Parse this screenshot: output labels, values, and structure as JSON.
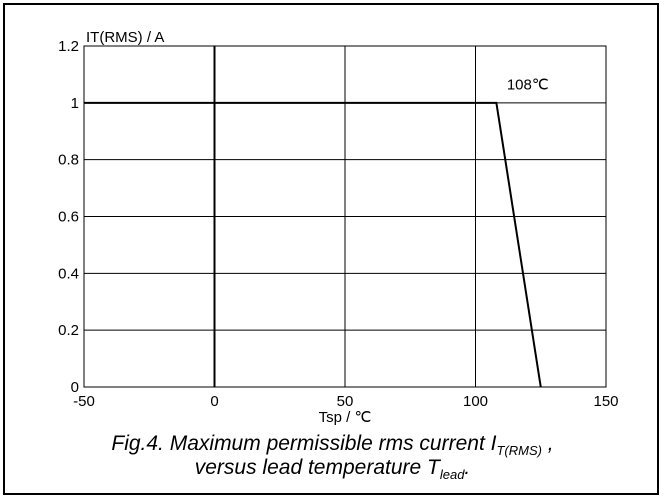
{
  "chart_data": {
    "type": "line",
    "ylabel": "IT(RMS) / A",
    "xlabel": "Tsp / ℃",
    "xlim": [
      -50,
      150
    ],
    "ylim": [
      0,
      1.2
    ],
    "xticks": [
      -50,
      0,
      50,
      100,
      150
    ],
    "xtick_labels": [
      "-50",
      "0",
      "50",
      "100",
      "150"
    ],
    "yticks": [
      0,
      0.2,
      0.4,
      0.6,
      0.8,
      1,
      1.2
    ],
    "ytick_labels": [
      "0",
      "0.2",
      "0.4",
      "0.6",
      "0.8",
      "1",
      "1.2"
    ],
    "grid": true,
    "series": [
      {
        "x": [
          -50,
          108,
          125
        ],
        "y": [
          1,
          1,
          0
        ]
      }
    ],
    "annotations": [
      {
        "text": "108℃",
        "x": 112,
        "y": 1.05
      }
    ],
    "colors": {
      "line": "#000000",
      "grid": "#000000"
    }
  },
  "caption": {
    "line1_prefix": "Fig.4.  Maximum permissible rms current I",
    "line1_sub": "T(RMS)",
    "line1_suffix": " ,",
    "line2_prefix": "versus lead temperature T",
    "line2_sub": "lead",
    "line2_suffix": "."
  }
}
